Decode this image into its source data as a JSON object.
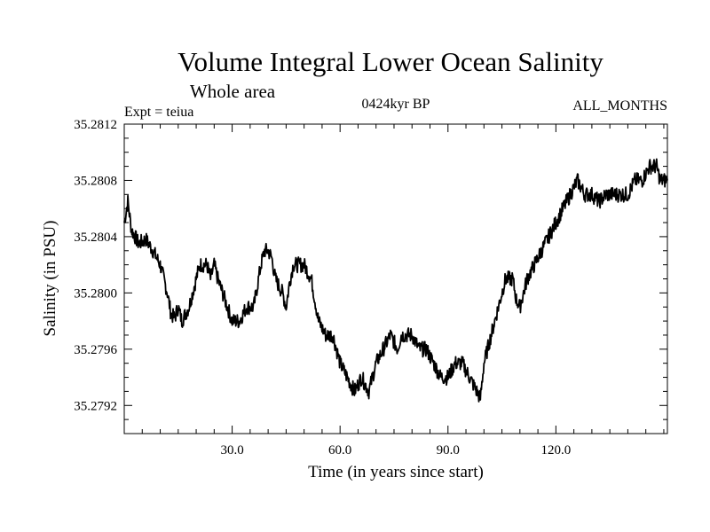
{
  "chart_data": {
    "type": "line",
    "title": "Volume Integral Lower Ocean Salinity",
    "subtitle": "Whole area",
    "expt_label": "Expt = teiua",
    "period_label": "0424kyr BP",
    "months_label": "ALL_MONTHS",
    "xlabel": "Time (in years since start)",
    "ylabel": "Salinity (in PSU)",
    "xlim": [
      0,
      151
    ],
    "ylim": [
      35.279,
      35.2812
    ],
    "xticks": [
      30.0,
      60.0,
      90.0,
      120.0
    ],
    "xtick_labels": [
      "30.0",
      "60.0",
      "90.0",
      "120.0"
    ],
    "yticks": [
      35.2792,
      35.2796,
      35.28,
      35.2804,
      35.2808,
      35.2812
    ],
    "ytick_labels": [
      "35.2792",
      "35.2796",
      "35.2800",
      "35.2804",
      "35.2808",
      "35.2812"
    ],
    "series": [
      {
        "name": "salinity",
        "color": "#000000",
        "x": [
          0,
          1,
          2,
          4,
          6,
          8,
          10,
          12,
          13,
          14,
          15,
          16,
          18,
          20,
          21,
          22,
          23,
          24,
          25,
          26,
          28,
          30,
          32,
          34,
          36,
          37,
          38,
          39,
          40,
          41,
          42,
          44,
          45,
          46,
          47,
          48,
          50,
          52,
          54,
          56,
          58,
          60,
          62,
          64,
          66,
          68,
          70,
          72,
          74,
          76,
          77,
          78,
          80,
          82,
          84,
          86,
          88,
          90,
          92,
          94,
          96,
          98,
          99,
          100,
          102,
          104,
          106,
          108,
          109,
          110,
          112,
          114,
          116,
          118,
          120,
          122,
          124,
          126,
          128,
          130,
          132,
          134,
          136,
          138,
          140,
          142,
          144,
          146,
          147,
          148,
          149,
          150,
          151
        ],
        "y": [
          35.2805,
          35.28065,
          35.28045,
          35.28035,
          35.28038,
          35.2803,
          35.2802,
          35.28,
          35.27985,
          35.27982,
          35.2799,
          35.2798,
          35.2799,
          35.2801,
          35.2802,
          35.2802,
          35.2802,
          35.2801,
          35.2802,
          35.2801,
          35.27995,
          35.2798,
          35.2798,
          35.2799,
          35.2799,
          35.28005,
          35.2802,
          35.2803,
          35.2803,
          35.28025,
          35.2801,
          35.28,
          35.2799,
          35.28008,
          35.2802,
          35.2802,
          35.2802,
          35.2801,
          35.2798,
          35.2797,
          35.2797,
          35.2795,
          35.2794,
          35.2793,
          35.2794,
          35.2793,
          35.2795,
          35.2796,
          35.2797,
          35.2796,
          35.2797,
          35.2797,
          35.2797,
          35.2796,
          35.2796,
          35.2795,
          35.2794,
          35.2794,
          35.2795,
          35.2795,
          35.2794,
          35.2793,
          35.27925,
          35.2795,
          35.2797,
          35.2799,
          35.2801,
          35.2801,
          35.27995,
          35.2799,
          35.2801,
          35.2802,
          35.2803,
          35.2804,
          35.2805,
          35.2806,
          35.2807,
          35.2808,
          35.2807,
          35.2807,
          35.28065,
          35.2807,
          35.2807,
          35.2807,
          35.2807,
          35.2808,
          35.2808,
          35.2809,
          35.2809,
          35.2809,
          35.2808,
          35.2808,
          35.2808
        ]
      }
    ]
  }
}
